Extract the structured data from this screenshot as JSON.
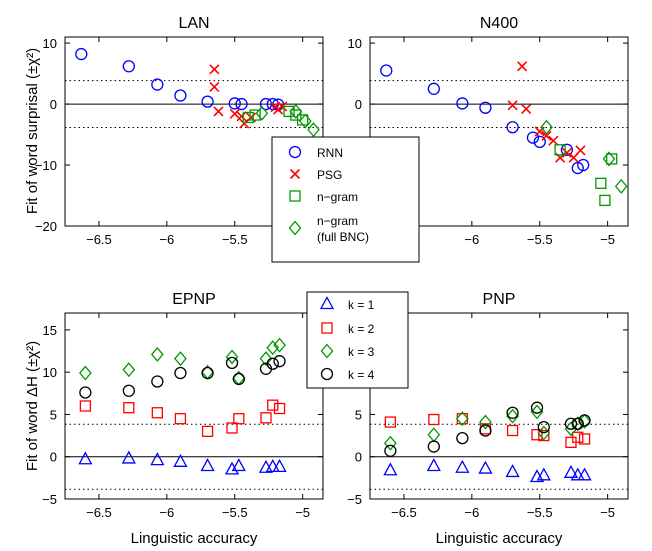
{
  "chart_data": [
    {
      "type": "scatter",
      "title": "LAN",
      "xlabel": "",
      "ylabel": "Fit of word surprisal (±χ²)",
      "xlim": [
        -6.75,
        -4.85
      ],
      "ylim": [
        -20,
        11
      ],
      "xticks": [
        -6.5,
        -6,
        -5.5,
        -5
      ],
      "yticks": [
        -20,
        -10,
        0,
        10
      ],
      "reference_lines": {
        "solid": 0,
        "dotted": [
          3.84,
          -3.84
        ]
      },
      "series": [
        {
          "name": "RNN",
          "marker": "circle",
          "color": "#0000ff",
          "x": [
            -6.63,
            -6.28,
            -6.07,
            -5.9,
            -5.7,
            -5.5,
            -5.45,
            -5.27,
            -5.22,
            -5.18
          ],
          "y": [
            8.2,
            6.2,
            3.2,
            1.4,
            0.4,
            0.1,
            0.0,
            0.0,
            0.0,
            -0.1
          ]
        },
        {
          "name": "PSG",
          "marker": "x",
          "color": "#ff0000",
          "x": [
            -5.65,
            -5.65,
            -5.62,
            -5.5,
            -5.45,
            -5.43,
            -5.38,
            -5.2,
            -5.18,
            -5.15
          ],
          "y": [
            5.7,
            2.8,
            -1.2,
            -1.6,
            -2.0,
            -3.2,
            -2.2,
            -0.5,
            -0.9,
            -0.4
          ]
        },
        {
          "name": "n−gram",
          "marker": "square",
          "color": "#009900",
          "x": [
            -5.4,
            -5.35,
            -5.1,
            -5.05,
            -5.0
          ],
          "y": [
            -2.2,
            -1.8,
            -1.2,
            -1.8,
            -2.6
          ]
        },
        {
          "name": "n−gram (full BNC)",
          "marker": "diamond",
          "color": "#009900",
          "x": [
            -5.3,
            -5.05,
            -4.98,
            -4.92
          ],
          "y": [
            -1.5,
            -1.2,
            -2.8,
            -4.2
          ]
        }
      ],
      "legend": {
        "position": "inside",
        "entries": [
          "RNN",
          "PSG",
          "n−gram",
          "n−gram",
          "(full BNC)"
        ]
      }
    },
    {
      "type": "scatter",
      "title": "N400",
      "xlabel": "",
      "ylabel": "",
      "xlim": [
        -6.75,
        -4.85
      ],
      "ylim": [
        -20,
        11
      ],
      "xticks": [
        -6.5,
        -6,
        -5.5,
        -5
      ],
      "yticks": [
        -20,
        -10,
        0,
        10
      ],
      "reference_lines": {
        "solid": 0,
        "dotted": [
          3.84,
          -3.84
        ]
      },
      "series": [
        {
          "name": "RNN",
          "marker": "circle",
          "color": "#0000ff",
          "x": [
            -6.63,
            -6.28,
            -6.07,
            -5.9,
            -5.7,
            -5.55,
            -5.5,
            -5.3,
            -5.22,
            -5.18
          ],
          "y": [
            5.5,
            2.5,
            0.1,
            -0.6,
            -3.8,
            -5.5,
            -6.2,
            -7.5,
            -10.5,
            -10.0
          ]
        },
        {
          "name": "PSG",
          "marker": "x",
          "color": "#ff0000",
          "x": [
            -5.7,
            -5.63,
            -5.6,
            -5.5,
            -5.45,
            -5.4,
            -5.35,
            -5.3,
            -5.25,
            -5.2
          ],
          "y": [
            -0.2,
            6.2,
            -0.8,
            -4.5,
            -5.2,
            -6.0,
            -8.8,
            -8.0,
            -8.8,
            -7.6
          ]
        },
        {
          "name": "n−gram",
          "marker": "square",
          "color": "#009900",
          "x": [
            -5.35,
            -5.05,
            -5.02,
            -4.97
          ],
          "y": [
            -7.5,
            -13.0,
            -15.8,
            -9.0
          ]
        },
        {
          "name": "n−gram (full BNC)",
          "marker": "diamond",
          "color": "#009900",
          "x": [
            -5.45,
            -4.99,
            -4.9
          ],
          "y": [
            -3.8,
            -9.0,
            -13.5
          ]
        }
      ]
    },
    {
      "type": "scatter",
      "title": "EPNP",
      "xlabel": "Linguistic accuracy",
      "ylabel": "Fit of word ΔH (±χ²)",
      "xlim": [
        -6.75,
        -4.85
      ],
      "ylim": [
        -5,
        17
      ],
      "xticks": [
        -6.5,
        -6,
        -5.5,
        -5
      ],
      "yticks": [
        -5,
        0,
        5,
        10,
        15
      ],
      "reference_lines": {
        "solid": 0,
        "dotted": [
          3.84,
          -3.84
        ]
      },
      "series": [
        {
          "name": "k = 1",
          "marker": "triangle",
          "color": "#0000ff",
          "x": [
            -6.6,
            -6.28,
            -6.07,
            -5.9,
            -5.7,
            -5.52,
            -5.47,
            -5.27,
            -5.22,
            -5.17
          ],
          "y": [
            -0.3,
            -0.2,
            -0.4,
            -0.6,
            -1.1,
            -1.5,
            -1.1,
            -1.3,
            -1.2,
            -1.2
          ]
        },
        {
          "name": "k = 2",
          "marker": "square",
          "color": "#ff0000",
          "x": [
            -6.6,
            -6.28,
            -6.07,
            -5.9,
            -5.7,
            -5.52,
            -5.47,
            -5.27,
            -5.22,
            -5.17
          ],
          "y": [
            6.0,
            5.8,
            5.2,
            4.5,
            3.0,
            3.4,
            4.5,
            4.6,
            6.1,
            5.7
          ]
        },
        {
          "name": "k = 3",
          "marker": "diamond",
          "color": "#009900",
          "x": [
            -6.6,
            -6.28,
            -6.07,
            -5.9,
            -5.7,
            -5.52,
            -5.47,
            -5.27,
            -5.22,
            -5.17
          ],
          "y": [
            9.9,
            10.3,
            12.1,
            11.6,
            10.0,
            11.8,
            9.3,
            11.6,
            12.9,
            13.2
          ]
        },
        {
          "name": "k = 4",
          "marker": "circle",
          "color": "#000000",
          "x": [
            -6.6,
            -6.28,
            -6.07,
            -5.9,
            -5.7,
            -5.52,
            -5.47,
            -5.27,
            -5.22,
            -5.17
          ],
          "y": [
            7.6,
            7.8,
            8.9,
            9.9,
            9.9,
            11.1,
            9.2,
            10.4,
            11.0,
            11.3
          ]
        }
      ],
      "legend": {
        "position": "top",
        "entries": [
          "k = 1",
          "k = 2",
          "k = 3",
          "k = 4"
        ]
      }
    },
    {
      "type": "scatter",
      "title": "PNP",
      "xlabel": "Linguistic accuracy",
      "ylabel": "",
      "xlim": [
        -6.75,
        -4.85
      ],
      "ylim": [
        -5,
        17
      ],
      "xticks": [
        -6.5,
        -6,
        -5.5,
        -5
      ],
      "yticks": [
        -5,
        0,
        5,
        10,
        15
      ],
      "reference_lines": {
        "solid": 0,
        "dotted": [
          3.84,
          -3.84
        ]
      },
      "series": [
        {
          "name": "k = 1",
          "marker": "triangle",
          "color": "#0000ff",
          "x": [
            -6.6,
            -6.28,
            -6.07,
            -5.9,
            -5.7,
            -5.52,
            -5.47,
            -5.27,
            -5.22,
            -5.17
          ],
          "y": [
            -1.6,
            -1.1,
            -1.3,
            -1.4,
            -1.8,
            -2.4,
            -2.2,
            -1.9,
            -2.2,
            -2.2
          ]
        },
        {
          "name": "k = 2",
          "marker": "square",
          "color": "#ff0000",
          "x": [
            -6.6,
            -6.28,
            -6.07,
            -5.9,
            -5.7,
            -5.52,
            -5.47,
            -5.27,
            -5.22,
            -5.17
          ],
          "y": [
            4.1,
            4.4,
            4.5,
            3.3,
            3.1,
            2.6,
            2.5,
            1.7,
            2.3,
            2.1
          ]
        },
        {
          "name": "k = 3",
          "marker": "diamond",
          "color": "#009900",
          "x": [
            -6.6,
            -6.28,
            -6.07,
            -5.9,
            -5.7,
            -5.52,
            -5.47,
            -5.27,
            -5.22,
            -5.17
          ],
          "y": [
            1.6,
            2.6,
            4.5,
            4.1,
            4.8,
            5.3,
            2.8,
            3.3,
            3.9,
            4.2
          ]
        },
        {
          "name": "k = 4",
          "marker": "circle",
          "color": "#000000",
          "x": [
            -6.6,
            -6.28,
            -6.07,
            -5.9,
            -5.7,
            -5.52,
            -5.47,
            -5.27,
            -5.22,
            -5.17
          ],
          "y": [
            0.7,
            1.2,
            2.2,
            3.1,
            5.2,
            5.8,
            3.5,
            3.9,
            3.9,
            4.3
          ]
        }
      ]
    }
  ]
}
